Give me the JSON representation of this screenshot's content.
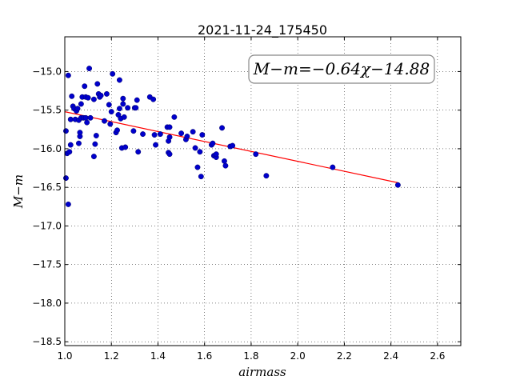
{
  "chart_data": {
    "type": "scatter",
    "title": "2021-11-24_175450",
    "xlabel": "airmass",
    "ylabel": "M−m",
    "xlim": [
      1.0,
      2.7
    ],
    "ylim": [
      -18.55,
      -14.55
    ],
    "x_ticks": [
      1.0,
      1.2,
      1.4,
      1.6,
      1.8,
      2.0,
      2.2,
      2.4,
      2.6
    ],
    "x_tick_labels": [
      "1.0",
      "1.2",
      "1.4",
      "1.6",
      "1.8",
      "2.0",
      "2.2",
      "2.4",
      "2.6"
    ],
    "y_ticks": [
      -15.0,
      -15.5,
      -16.0,
      -16.5,
      -17.0,
      -17.5,
      -18.0,
      -18.5
    ],
    "y_tick_labels": [
      "−15.0",
      "−15.5",
      "−16.0",
      "−16.5",
      "−17.0",
      "−17.5",
      "−18.0",
      "−18.5"
    ],
    "grid": true,
    "annotation": "M−m=−0.64χ−14.88",
    "fit_line": {
      "x": [
        1.0,
        2.43
      ],
      "y": [
        -15.52,
        -16.44
      ]
    },
    "colors": {
      "points": "#0000cc",
      "fit_line": "#ff0000"
    },
    "points": [
      [
        1.005,
        -15.77
      ],
      [
        1.005,
        -16.38
      ],
      [
        1.01,
        -16.06
      ],
      [
        1.015,
        -15.05
      ],
      [
        1.015,
        -16.72
      ],
      [
        1.02,
        -16.04
      ],
      [
        1.025,
        -15.95
      ],
      [
        1.025,
        -15.62
      ],
      [
        1.03,
        -15.32
      ],
      [
        1.035,
        -15.45
      ],
      [
        1.04,
        -15.48
      ],
      [
        1.045,
        -15.62
      ],
      [
        1.05,
        -15.51
      ],
      [
        1.055,
        -15.48
      ],
      [
        1.06,
        -15.63
      ],
      [
        1.06,
        -15.93
      ],
      [
        1.065,
        -15.84
      ],
      [
        1.065,
        -15.79
      ],
      [
        1.07,
        -15.42
      ],
      [
        1.07,
        -15.6
      ],
      [
        1.075,
        -15.33
      ],
      [
        1.08,
        -15.6
      ],
      [
        1.085,
        -15.19
      ],
      [
        1.09,
        -15.33
      ],
      [
        1.09,
        -15.6
      ],
      [
        1.095,
        -15.66
      ],
      [
        1.1,
        -15.34
      ],
      [
        1.105,
        -14.96
      ],
      [
        1.11,
        -15.6
      ],
      [
        1.125,
        -15.36
      ],
      [
        1.125,
        -16.1
      ],
      [
        1.13,
        -15.94
      ],
      [
        1.135,
        -15.83
      ],
      [
        1.14,
        -15.16
      ],
      [
        1.145,
        -15.29
      ],
      [
        1.15,
        -15.33
      ],
      [
        1.155,
        -15.31
      ],
      [
        1.17,
        -15.64
      ],
      [
        1.18,
        -15.29
      ],
      [
        1.19,
        -15.43
      ],
      [
        1.195,
        -15.68
      ],
      [
        1.2,
        -15.52
      ],
      [
        1.205,
        -15.03
      ],
      [
        1.22,
        -15.79
      ],
      [
        1.225,
        -15.76
      ],
      [
        1.23,
        -15.56
      ],
      [
        1.235,
        -15.11
      ],
      [
        1.235,
        -15.48
      ],
      [
        1.24,
        -15.61
      ],
      [
        1.245,
        -15.99
      ],
      [
        1.25,
        -15.42
      ],
      [
        1.25,
        -15.35
      ],
      [
        1.255,
        -15.59
      ],
      [
        1.26,
        -15.98
      ],
      [
        1.27,
        -15.47
      ],
      [
        1.295,
        -15.77
      ],
      [
        1.3,
        -15.47
      ],
      [
        1.305,
        -15.47
      ],
      [
        1.31,
        -15.37
      ],
      [
        1.315,
        -16.04
      ],
      [
        1.335,
        -15.81
      ],
      [
        1.365,
        -15.33
      ],
      [
        1.38,
        -15.36
      ],
      [
        1.385,
        -15.82
      ],
      [
        1.39,
        -15.95
      ],
      [
        1.41,
        -15.81
      ],
      [
        1.44,
        -15.72
      ],
      [
        1.445,
        -16.05
      ],
      [
        1.445,
        -15.9
      ],
      [
        1.45,
        -15.85
      ],
      [
        1.45,
        -16.07
      ],
      [
        1.45,
        -15.72
      ],
      [
        1.47,
        -15.59
      ],
      [
        1.5,
        -15.8
      ],
      [
        1.52,
        -15.88
      ],
      [
        1.525,
        -15.84
      ],
      [
        1.55,
        -15.78
      ],
      [
        1.56,
        -15.99
      ],
      [
        1.57,
        -16.24
      ],
      [
        1.58,
        -16.04
      ],
      [
        1.585,
        -16.36
      ],
      [
        1.59,
        -15.82
      ],
      [
        1.63,
        -15.95
      ],
      [
        1.635,
        -15.93
      ],
      [
        1.64,
        -16.09
      ],
      [
        1.645,
        -16.09
      ],
      [
        1.65,
        -16.11
      ],
      [
        1.65,
        -16.07
      ],
      [
        1.675,
        -15.73
      ],
      [
        1.685,
        -16.16
      ],
      [
        1.69,
        -16.22
      ],
      [
        1.71,
        -15.97
      ],
      [
        1.72,
        -15.96
      ],
      [
        1.82,
        -16.07
      ],
      [
        1.865,
        -16.35
      ],
      [
        2.15,
        -16.24
      ],
      [
        2.43,
        -16.47
      ]
    ]
  }
}
